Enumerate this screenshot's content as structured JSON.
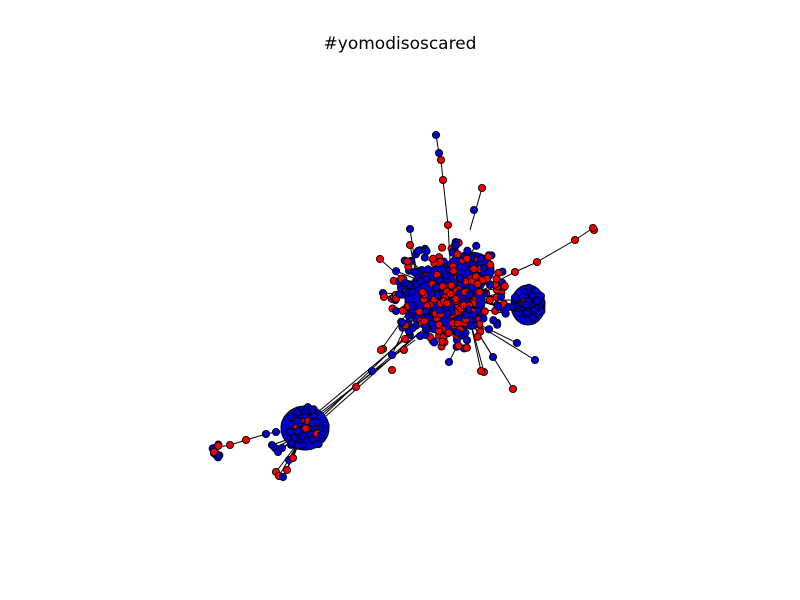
{
  "figure": {
    "title": "#yomodisoscared"
  },
  "legend_colors": {
    "node_red": "#ee0000",
    "node_blue": "#0000cc",
    "node_stroke": "#000000",
    "edge": "#000000",
    "background": "#ffffff"
  }
}
